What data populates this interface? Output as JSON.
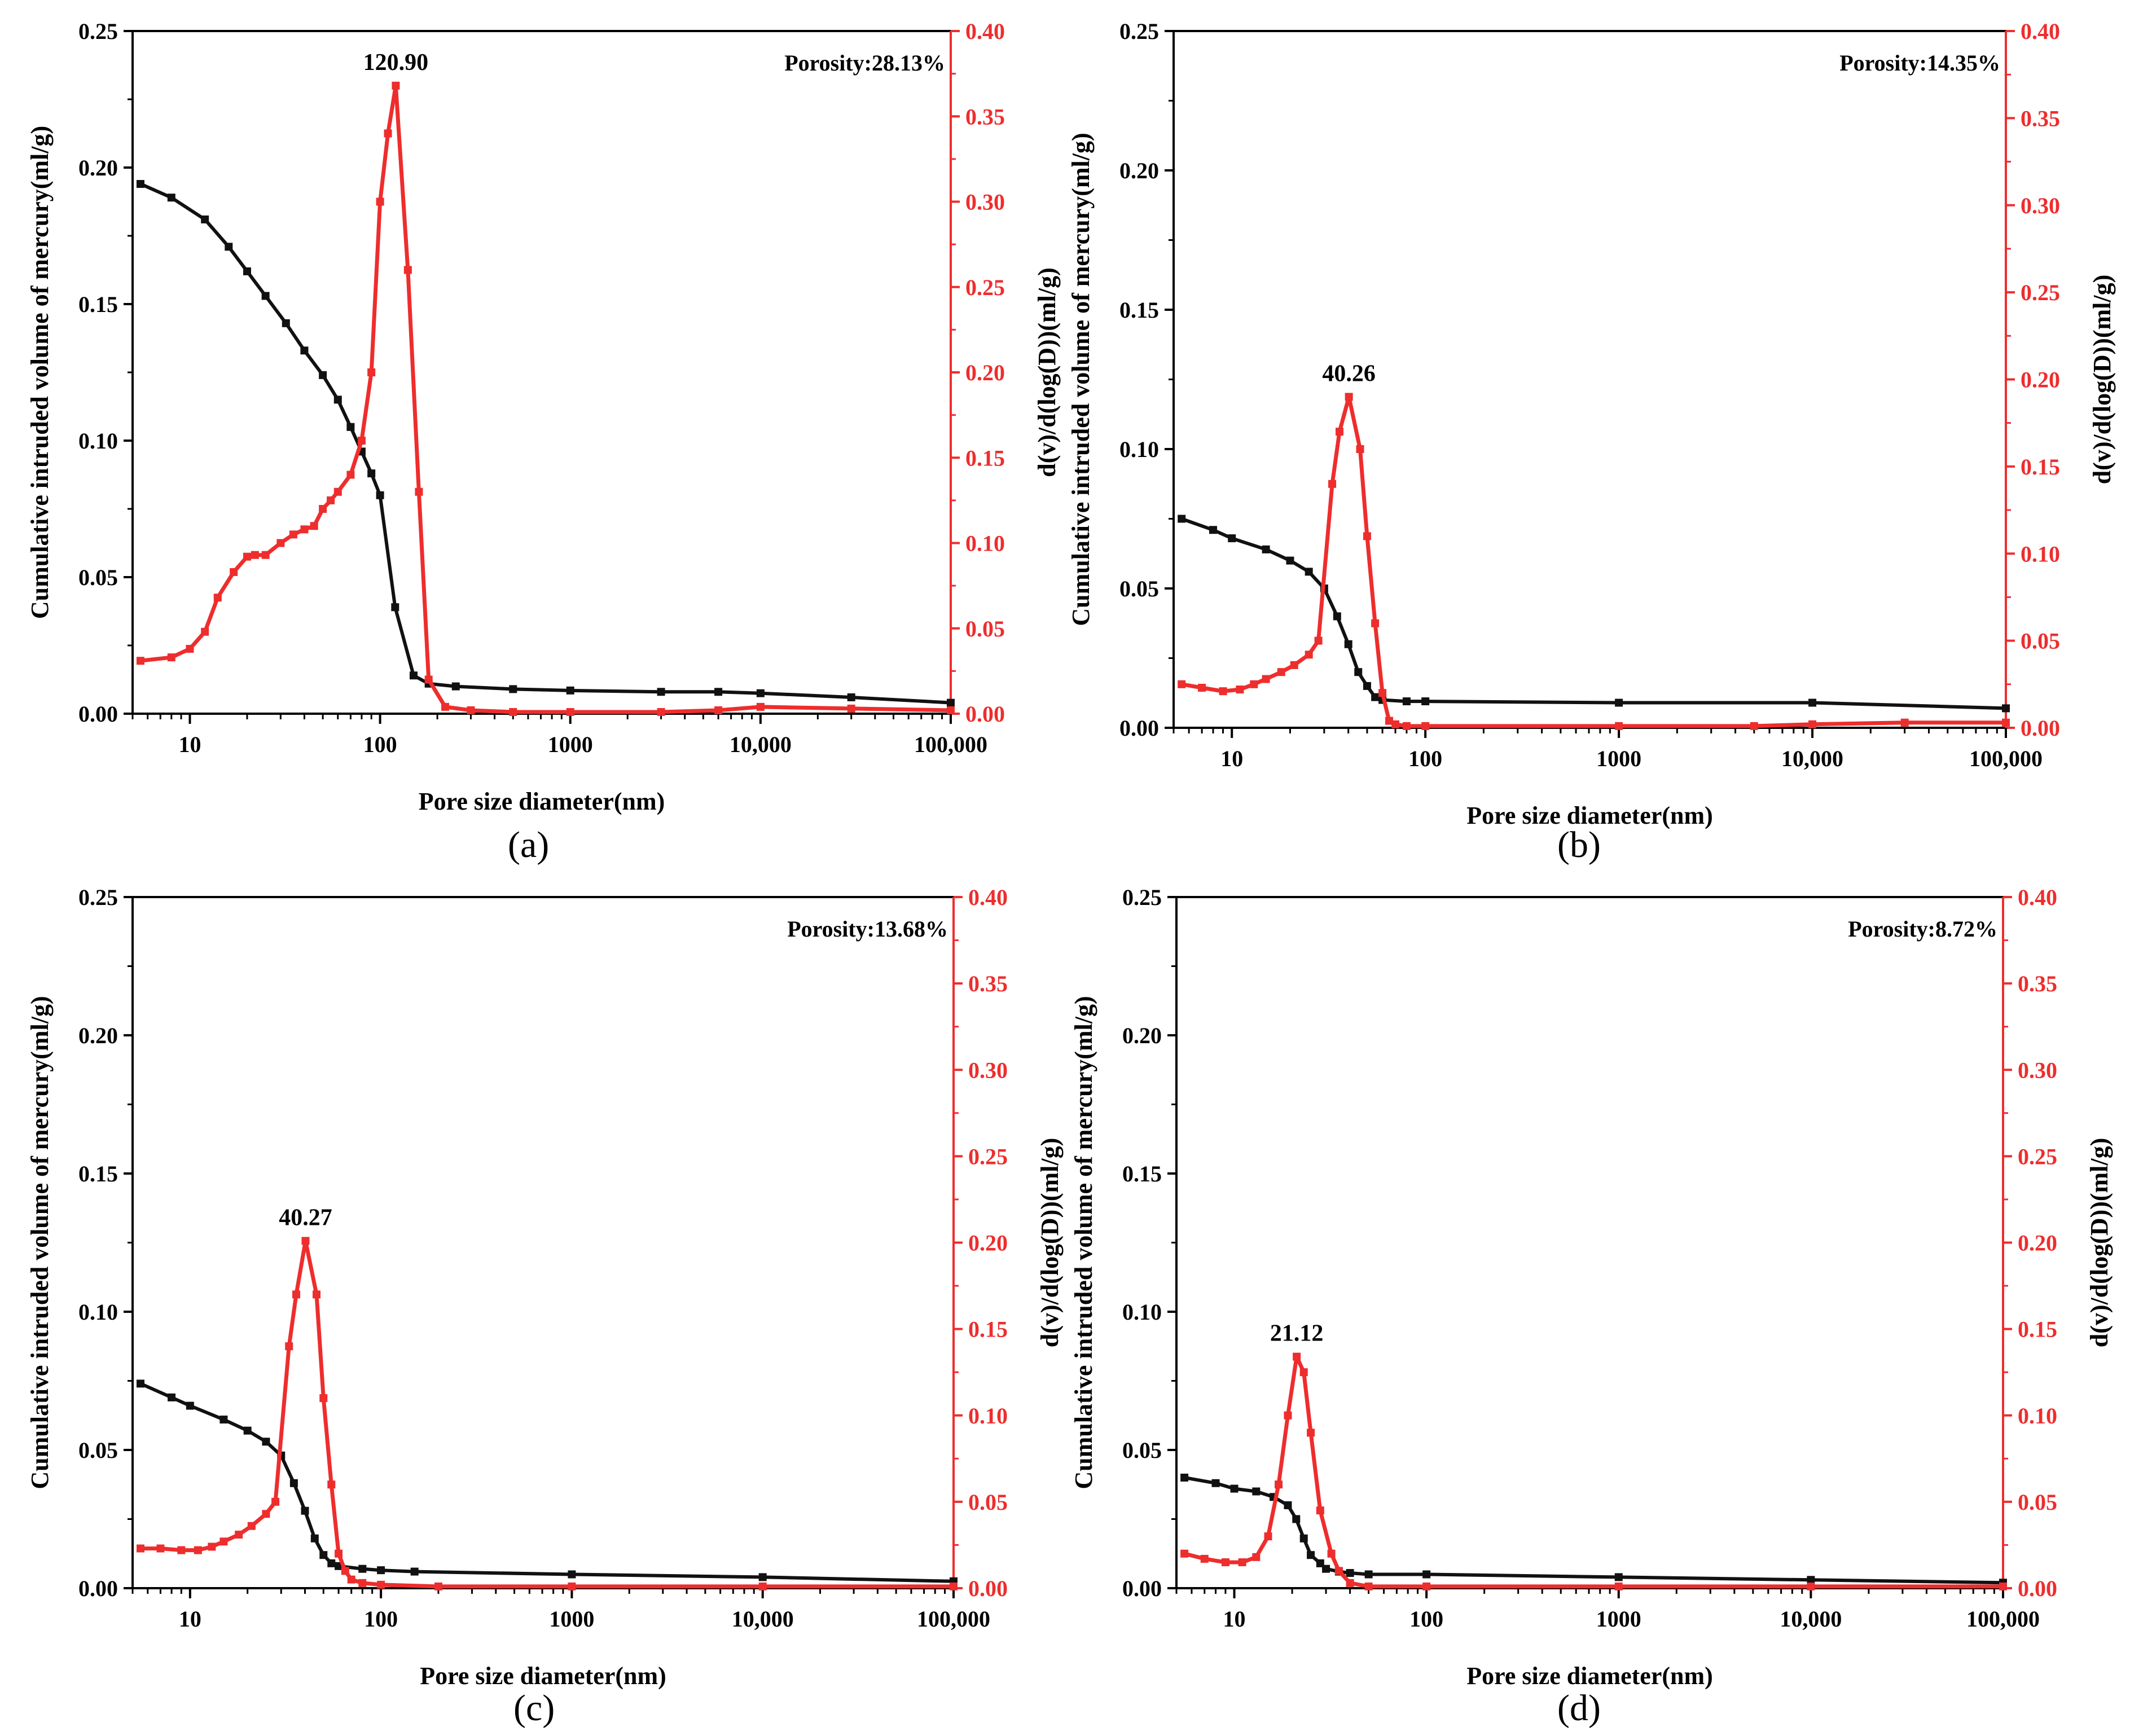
{
  "figure": {
    "panel_labels": [
      "(a)",
      "(b)",
      "(c)",
      "(d)"
    ],
    "colors": {
      "cumulative": "#111111",
      "derivative": "#ee2d2d",
      "axis": "#000000"
    }
  },
  "chart_data": [
    {
      "type": "line",
      "panel": "(a)",
      "title": "",
      "xlabel": "Pore size diameter(nm)",
      "ylabel_left": "Cumulative intruded volume of mercury(ml/g)",
      "ylabel_right": "d(v)/d(log(D))(ml/g)",
      "xscale": "log",
      "xlim": [
        5,
        100000
      ],
      "ylim_left": [
        0,
        0.25
      ],
      "ylim_right": [
        0,
        0.4
      ],
      "x_ticks": [
        "10",
        "100",
        "1000",
        "10,000",
        "100,000"
      ],
      "x_tick_values": [
        10,
        100,
        1000,
        10000,
        100000
      ],
      "y_left_ticks": [
        "0.00",
        "0.05",
        "0.10",
        "0.15",
        "0.20",
        "0.25"
      ],
      "y_right_ticks": [
        "0.00",
        "0.05",
        "0.10",
        "0.15",
        "0.20",
        "0.25",
        "0.30",
        "0.35",
        "0.40"
      ],
      "annotations": {
        "porosity": "Porosity:28.13%",
        "peak_label": "120.90",
        "peak_x": 120.9,
        "peak_y": 0.368
      },
      "series": [
        {
          "name": "Cumulative intruded volume",
          "axis": "left",
          "x": [
            5.5,
            8,
            12,
            16,
            20,
            25,
            32,
            40,
            50,
            60,
            70,
            80,
            90,
            100,
            120,
            150,
            180,
            250,
            500,
            1000,
            3000,
            6000,
            10000,
            30000,
            100000
          ],
          "values": [
            0.194,
            0.189,
            0.181,
            0.171,
            0.162,
            0.153,
            0.143,
            0.133,
            0.124,
            0.115,
            0.105,
            0.096,
            0.088,
            0.08,
            0.039,
            0.014,
            0.011,
            0.01,
            0.009,
            0.0085,
            0.008,
            0.008,
            0.0075,
            0.006,
            0.004
          ]
        },
        {
          "name": "d(v)/d(log(D))",
          "axis": "right",
          "x": [
            5.5,
            8,
            10,
            12,
            14,
            17,
            20,
            22,
            25,
            30,
            35,
            40,
            45,
            50,
            55,
            60,
            70,
            80,
            90,
            100,
            110,
            120.9,
            140,
            160,
            180,
            220,
            300,
            500,
            1000,
            3000,
            6000,
            10000,
            30000,
            100000
          ],
          "values": [
            0.031,
            0.033,
            0.038,
            0.048,
            0.068,
            0.083,
            0.092,
            0.093,
            0.093,
            0.1,
            0.105,
            0.108,
            0.11,
            0.12,
            0.125,
            0.13,
            0.14,
            0.16,
            0.2,
            0.3,
            0.34,
            0.368,
            0.26,
            0.13,
            0.02,
            0.004,
            0.002,
            0.001,
            0.001,
            0.001,
            0.002,
            0.004,
            0.003,
            0.002
          ]
        }
      ]
    },
    {
      "type": "line",
      "panel": "(b)",
      "title": "",
      "xlabel": "Pore size diameter(nm)",
      "ylabel_left": "Cumulative intruded volume of mercury(ml/g)",
      "ylabel_right": "d(v)/d(log(D))(ml/g)",
      "xscale": "log",
      "xlim": [
        5,
        100000
      ],
      "ylim_left": [
        0,
        0.25
      ],
      "ylim_right": [
        0,
        0.4
      ],
      "x_ticks": [
        "10",
        "100",
        "1000",
        "10,000",
        "100,000"
      ],
      "x_tick_values": [
        10,
        100,
        1000,
        10000,
        100000
      ],
      "y_left_ticks": [
        "0.00",
        "0.05",
        "0.10",
        "0.15",
        "0.20",
        "0.25"
      ],
      "y_right_ticks": [
        "0.00",
        "0.05",
        "0.10",
        "0.15",
        "0.20",
        "0.25",
        "0.30",
        "0.35",
        "0.40"
      ],
      "annotations": {
        "porosity": "Porosity:14.35%",
        "peak_label": "40.26",
        "peak_x": 40.26,
        "peak_y": 0.19
      },
      "series": [
        {
          "name": "Cumulative intruded volume",
          "axis": "left",
          "x": [
            5.5,
            8,
            10,
            15,
            20,
            25,
            30,
            35,
            40,
            45,
            50,
            55,
            60,
            80,
            100,
            1000,
            10000,
            100000
          ],
          "values": [
            0.075,
            0.071,
            0.068,
            0.064,
            0.06,
            0.056,
            0.05,
            0.04,
            0.03,
            0.02,
            0.015,
            0.011,
            0.01,
            0.0095,
            0.0095,
            0.009,
            0.009,
            0.007
          ]
        },
        {
          "name": "d(v)/d(log(D))",
          "axis": "right",
          "x": [
            5.5,
            7,
            9,
            11,
            13,
            15,
            18,
            21,
            25,
            28,
            33,
            36,
            40.26,
            46,
            50,
            55,
            60,
            65,
            70,
            80,
            100,
            1000,
            5000,
            10000,
            30000,
            100000
          ],
          "values": [
            0.025,
            0.023,
            0.021,
            0.022,
            0.025,
            0.028,
            0.032,
            0.036,
            0.042,
            0.05,
            0.14,
            0.17,
            0.19,
            0.16,
            0.11,
            0.06,
            0.02,
            0.004,
            0.002,
            0.001,
            0.001,
            0.001,
            0.001,
            0.002,
            0.003,
            0.003
          ]
        }
      ]
    },
    {
      "type": "line",
      "panel": "(c)",
      "title": "",
      "xlabel": "Pore size diameter(nm)",
      "ylabel_left": "Cumulative intruded volume of mercury(ml/g)",
      "ylabel_right": "d(v)/d(log(D))(ml/g)",
      "xscale": "log",
      "xlim": [
        5,
        100000
      ],
      "ylim_left": [
        0,
        0.25
      ],
      "ylim_right": [
        0,
        0.4
      ],
      "x_ticks": [
        "10",
        "100",
        "1000",
        "10,000",
        "100,000"
      ],
      "x_tick_values": [
        10,
        100,
        1000,
        10000,
        100000
      ],
      "y_left_ticks": [
        "0.00",
        "0.05",
        "0.10",
        "0.15",
        "0.20",
        "0.25"
      ],
      "y_right_ticks": [
        "0.00",
        "0.05",
        "0.10",
        "0.15",
        "0.20",
        "0.25",
        "0.30",
        "0.35",
        "0.40"
      ],
      "annotations": {
        "porosity": "Porosity:13.68%",
        "peak_label": "40.27",
        "peak_x": 40.27,
        "peak_y": 0.201
      },
      "series": [
        {
          "name": "Cumulative intruded volume",
          "axis": "left",
          "x": [
            5.5,
            8,
            10,
            15,
            20,
            25,
            30,
            35,
            40,
            45,
            50,
            55,
            60,
            80,
            100,
            150,
            1000,
            10000,
            100000
          ],
          "values": [
            0.074,
            0.069,
            0.066,
            0.061,
            0.057,
            0.053,
            0.048,
            0.038,
            0.028,
            0.018,
            0.012,
            0.009,
            0.008,
            0.007,
            0.0065,
            0.006,
            0.005,
            0.004,
            0.0025
          ]
        },
        {
          "name": "d(v)/d(log(D))",
          "axis": "right",
          "x": [
            5.5,
            7,
            9,
            11,
            13,
            15,
            18,
            21,
            25,
            28,
            33,
            36,
            40.27,
            46,
            50,
            55,
            60,
            65,
            70,
            80,
            100,
            200,
            1000,
            10000,
            100000
          ],
          "values": [
            0.023,
            0.023,
            0.022,
            0.022,
            0.024,
            0.027,
            0.031,
            0.036,
            0.043,
            0.05,
            0.14,
            0.17,
            0.201,
            0.17,
            0.11,
            0.06,
            0.02,
            0.01,
            0.005,
            0.003,
            0.002,
            0.001,
            0.001,
            0.001,
            0.001
          ]
        }
      ]
    },
    {
      "type": "line",
      "panel": "(d)",
      "title": "",
      "xlabel": "Pore size diameter(nm)",
      "ylabel_left": "Cumulative intruded volume of mercury(ml/g)",
      "ylabel_right": "d(v)/d(log(D))(ml/g)",
      "xscale": "log",
      "xlim": [
        5,
        100000
      ],
      "ylim_left": [
        0,
        0.25
      ],
      "ylim_right": [
        0,
        0.4
      ],
      "x_ticks": [
        "10",
        "100",
        "1000",
        "10,000",
        "100,000"
      ],
      "x_tick_values": [
        10,
        100,
        1000,
        10000,
        100000
      ],
      "y_left_ticks": [
        "0.00",
        "0.05",
        "0.10",
        "0.15",
        "0.20",
        "0.25"
      ],
      "y_right_ticks": [
        "0.00",
        "0.05",
        "0.10",
        "0.15",
        "0.20",
        "0.25",
        "0.30",
        "0.35",
        "0.40"
      ],
      "annotations": {
        "porosity": "Porosity:8.72%",
        "peak_label": "21.12",
        "peak_x": 21.12,
        "peak_y": 0.134
      },
      "series": [
        {
          "name": "Cumulative intruded volume",
          "axis": "left",
          "x": [
            5.5,
            8,
            10,
            13,
            16,
            19,
            21,
            23,
            25,
            28,
            30,
            35,
            40,
            50,
            100,
            1000,
            10000,
            100000
          ],
          "values": [
            0.04,
            0.038,
            0.036,
            0.035,
            0.033,
            0.03,
            0.025,
            0.018,
            0.012,
            0.009,
            0.007,
            0.006,
            0.0055,
            0.005,
            0.005,
            0.004,
            0.003,
            0.002
          ]
        },
        {
          "name": "d(v)/d(log(D))",
          "axis": "right",
          "x": [
            5.5,
            7,
            9,
            11,
            13,
            15,
            17,
            19,
            21.12,
            23,
            25,
            28,
            32,
            35,
            40,
            50,
            100,
            1000,
            10000,
            100000
          ],
          "values": [
            0.02,
            0.017,
            0.015,
            0.015,
            0.018,
            0.03,
            0.06,
            0.1,
            0.134,
            0.125,
            0.09,
            0.045,
            0.02,
            0.01,
            0.003,
            0.001,
            0.001,
            0.001,
            0.001,
            0.001
          ]
        }
      ]
    }
  ]
}
